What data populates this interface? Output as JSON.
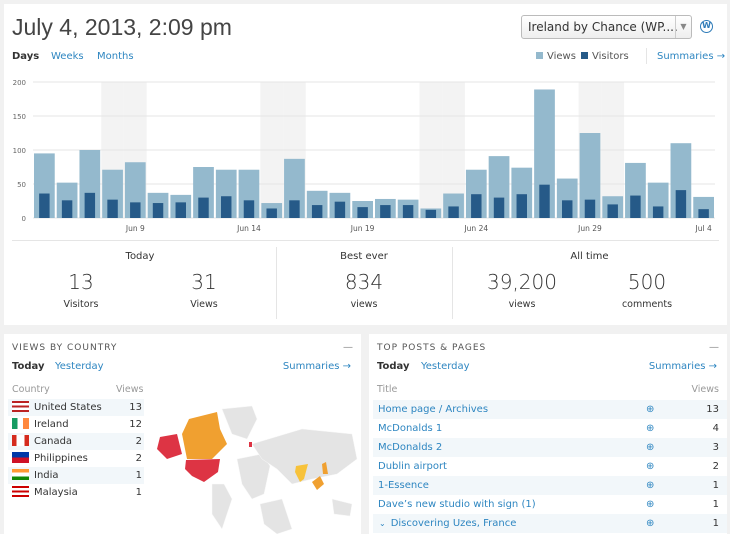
{
  "header": {
    "title": "July 4, 2013, 2:09 pm",
    "site_select": "Ireland by Chance (WP....",
    "wp_icon": "wordpress-icon"
  },
  "period_tabs": [
    {
      "label": "Days",
      "active": true
    },
    {
      "label": "Weeks",
      "active": false
    },
    {
      "label": "Months",
      "active": false
    }
  ],
  "legend": {
    "views": "Views",
    "visitors": "Visitors",
    "summaries": "Summaries →"
  },
  "colors": {
    "views": "#94b9cd",
    "visitors": "#265a88",
    "weekend": "#f3f3f3",
    "link": "#2e86c1",
    "map_high": "#dd3444",
    "map_mid": "#f0a030",
    "map_low": "#f7c23a"
  },
  "chart_data": {
    "type": "bar",
    "categories": [
      "Jun 5",
      "Jun 6",
      "Jun 7",
      "Jun 8",
      "Jun 9",
      "Jun 10",
      "Jun 11",
      "Jun 12",
      "Jun 13",
      "Jun 14",
      "Jun 15",
      "Jun 16",
      "Jun 17",
      "Jun 18",
      "Jun 19",
      "Jun 20",
      "Jun 21",
      "Jun 22",
      "Jun 23",
      "Jun 24",
      "Jun 25",
      "Jun 26",
      "Jun 27",
      "Jun 28",
      "Jun 29",
      "Jun 30",
      "Jul 1",
      "Jul 2",
      "Jul 3",
      "Jul 4"
    ],
    "tick_labels": [
      "Jun 9",
      "Jun 14",
      "Jun 19",
      "Jun 24",
      "Jun 29",
      "Jul 4"
    ],
    "series": [
      {
        "name": "Views",
        "values": [
          95,
          52,
          100,
          71,
          82,
          37,
          34,
          75,
          71,
          71,
          22,
          87,
          40,
          37,
          25,
          28,
          27,
          14,
          36,
          71,
          91,
          74,
          189,
          58,
          125,
          32,
          81,
          52,
          110,
          31
        ]
      },
      {
        "name": "Visitors",
        "values": [
          36,
          26,
          37,
          27,
          23,
          22,
          23,
          30,
          32,
          26,
          14,
          26,
          19,
          24,
          16,
          19,
          19,
          12,
          17,
          35,
          30,
          35,
          49,
          26,
          27,
          20,
          33,
          17,
          41,
          13
        ]
      }
    ],
    "weekend_shaded": [
      "Jun 8",
      "Jun 9",
      "Jun 15",
      "Jun 16",
      "Jun 22",
      "Jun 23",
      "Jun 29",
      "Jun 30"
    ],
    "ylim": [
      0,
      200
    ],
    "yticks": [
      0,
      50,
      100,
      150,
      200
    ],
    "grid": true,
    "legend_position": "top-right"
  },
  "stats": {
    "today": {
      "label": "Today",
      "visitors": "13",
      "visitors_label": "Visitors",
      "views": "31",
      "views_label": "Views"
    },
    "best": {
      "label": "Best ever",
      "views": "834",
      "views_label": "views"
    },
    "all_time": {
      "label": "All time",
      "views": "39,200",
      "views_label": "views",
      "comments": "500",
      "comments_label": "comments"
    }
  },
  "country": {
    "title": "VIEWS BY COUNTRY",
    "today": "Today",
    "yesterday": "Yesterday",
    "summaries": "Summaries →",
    "col_country": "Country",
    "col_views": "Views",
    "rows": [
      {
        "name": "United States",
        "views": "13",
        "flag": "us"
      },
      {
        "name": "Ireland",
        "views": "12",
        "flag": "ie"
      },
      {
        "name": "Canada",
        "views": "2",
        "flag": "ca"
      },
      {
        "name": "Philippines",
        "views": "2",
        "flag": "ph"
      },
      {
        "name": "India",
        "views": "1",
        "flag": "in"
      },
      {
        "name": "Malaysia",
        "views": "1",
        "flag": "my"
      }
    ]
  },
  "posts": {
    "title": "TOP POSTS & PAGES",
    "today": "Today",
    "yesterday": "Yesterday",
    "summaries": "Summaries →",
    "col_title": "Title",
    "col_views": "Views",
    "rows": [
      {
        "title": "Home page / Archives",
        "views": "13"
      },
      {
        "title": "McDonalds 1",
        "views": "4"
      },
      {
        "title": "McDonalds 2",
        "views": "3"
      },
      {
        "title": "Dublin airport",
        "views": "2"
      },
      {
        "title": "1-Essence",
        "views": "1"
      },
      {
        "title": "Dave’s new studio with sign (1)",
        "views": "1"
      },
      {
        "title": "Discovering Uzes, France",
        "views": "1",
        "expandable": true
      }
    ]
  }
}
